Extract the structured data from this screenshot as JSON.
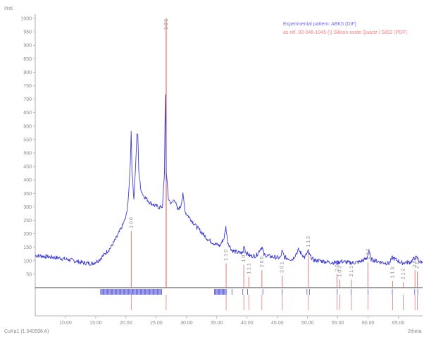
{
  "chart_data": {
    "type": "line",
    "title": "",
    "xlabel": "2theta",
    "ylabel": "I/rel.",
    "footer_label": "CuKa1 (1.540598 A)",
    "xlim": [
      5,
      69
    ],
    "ylim": [
      0,
      1000
    ],
    "x_ticks": [
      "10.00",
      "15.00",
      "20.00",
      "25.00",
      "30.00",
      "35.00",
      "40.00",
      "45.00",
      "50.00",
      "55.00",
      "60.00",
      "65.00"
    ],
    "y_ticks": [
      "50",
      "100",
      "150",
      "200",
      "250",
      "300",
      "350",
      "400",
      "450",
      "500",
      "550",
      "600",
      "650",
      "700",
      "750",
      "800",
      "850",
      "900",
      "950",
      "1000"
    ],
    "legend": [
      {
        "name": "Experimental pattern: ABK5 (DIF)",
        "color": "#6a6aff"
      },
      {
        "name": "as ref. 00-046-1045 (I) Silicon oxide Quartz / SiO2 (PDF)",
        "color": "#ff7a7a"
      }
    ],
    "series": [
      {
        "name": "Experimental pattern: ABK5 (DIF)",
        "color": "#3b3bd6",
        "x": [
          5.0,
          7.0,
          9.0,
          11.0,
          13.0,
          14.5,
          15.5,
          16.5,
          17.5,
          18.5,
          19.3,
          20.0,
          20.4,
          20.7,
          20.85,
          21.0,
          21.3,
          21.6,
          21.8,
          21.95,
          22.1,
          22.4,
          22.8,
          23.3,
          24.0,
          24.8,
          25.5,
          26.0,
          26.35,
          26.5,
          26.65,
          27.0,
          27.5,
          28.0,
          28.5,
          29.0,
          29.4,
          29.8,
          30.5,
          31.5,
          32.5,
          33.5,
          34.5,
          35.5,
          36.2,
          36.5,
          36.8,
          37.5,
          38.5,
          39.3,
          39.5,
          39.8,
          40.5,
          41.5,
          42.3,
          42.5,
          42.8,
          44.0,
          45.5,
          45.8,
          46.2,
          47.5,
          48.5,
          49.5,
          50.1,
          50.4,
          51.0,
          52.0,
          53.5,
          54.9,
          55.5,
          57.0,
          58.5,
          59.8,
          60.1,
          60.5,
          62.0,
          63.5,
          64.0,
          65.5,
          67.0,
          67.7,
          68.1,
          68.5,
          69.0
        ],
        "values": [
          120,
          115,
          110,
          102,
          92,
          90,
          102,
          125,
          150,
          188,
          225,
          262,
          330,
          460,
          580,
          430,
          330,
          460,
          565,
          570,
          440,
          370,
          345,
          332,
          315,
          305,
          298,
          300,
          420,
          720,
          430,
          330,
          310,
          330,
          290,
          300,
          345,
          280,
          260,
          230,
          205,
          180,
          165,
          155,
          185,
          225,
          170,
          138,
          130,
          128,
          160,
          130,
          118,
          118,
          148,
          150,
          122,
          115,
          110,
          135,
          112,
          105,
          140,
          112,
          135,
          118,
          102,
          100,
          95,
          92,
          98,
          92,
          95,
          108,
          140,
          105,
          95,
          90,
          112,
          92,
          95,
          110,
          112,
          95,
          95
        ]
      }
    ],
    "reference_peaks": {
      "name": "as ref. 00-046-1045 (I) Silicon oxide Quartz / SiO2 (PDF)",
      "color": "#e06a6a",
      "peaks": [
        {
          "x": 20.86,
          "y": 210,
          "label": "1 0 0"
        },
        {
          "x": 26.64,
          "y": 1000,
          "label": "1 0 1"
        },
        {
          "x": 36.54,
          "y": 90,
          "label": "1 1 0"
        },
        {
          "x": 39.46,
          "y": 85,
          "label": "1 0 2"
        },
        {
          "x": 40.29,
          "y": 40,
          "label": "1 1 1"
        },
        {
          "x": 42.45,
          "y": 65,
          "label": "2 0 0"
        },
        {
          "x": 45.79,
          "y": 45,
          "label": "2 0 1"
        },
        {
          "x": 50.14,
          "y": 140,
          "label": "1 1 2"
        },
        {
          "x": 54.87,
          "y": 50,
          "label": "2 0 2"
        },
        {
          "x": 55.33,
          "y": 30,
          "label": "1 0 3"
        },
        {
          "x": 57.24,
          "y": 30,
          "label": "2 1 1"
        },
        {
          "x": 59.96,
          "y": 95,
          "label": "2 1 1"
        },
        {
          "x": 64.04,
          "y": 25,
          "label": "1 1 3"
        },
        {
          "x": 65.79,
          "y": 20,
          "label": "2 1 2"
        },
        {
          "x": 67.74,
          "y": 65,
          "label": "2 0 3"
        },
        {
          "x": 68.14,
          "y": 60,
          "label": "2 1 2"
        }
      ]
    },
    "stick_markers": {
      "dense_ranges": [
        [
          15.8,
          25.9
        ],
        [
          34.6,
          36.6
        ]
      ],
      "isolated": [
        37.5,
        39.3,
        40.1,
        42.6,
        45.8,
        49.9,
        50.3,
        54.9,
        57.2,
        60.0,
        64.0,
        67.7,
        68.2
      ]
    },
    "grid": false,
    "legend_position": "top-right"
  }
}
